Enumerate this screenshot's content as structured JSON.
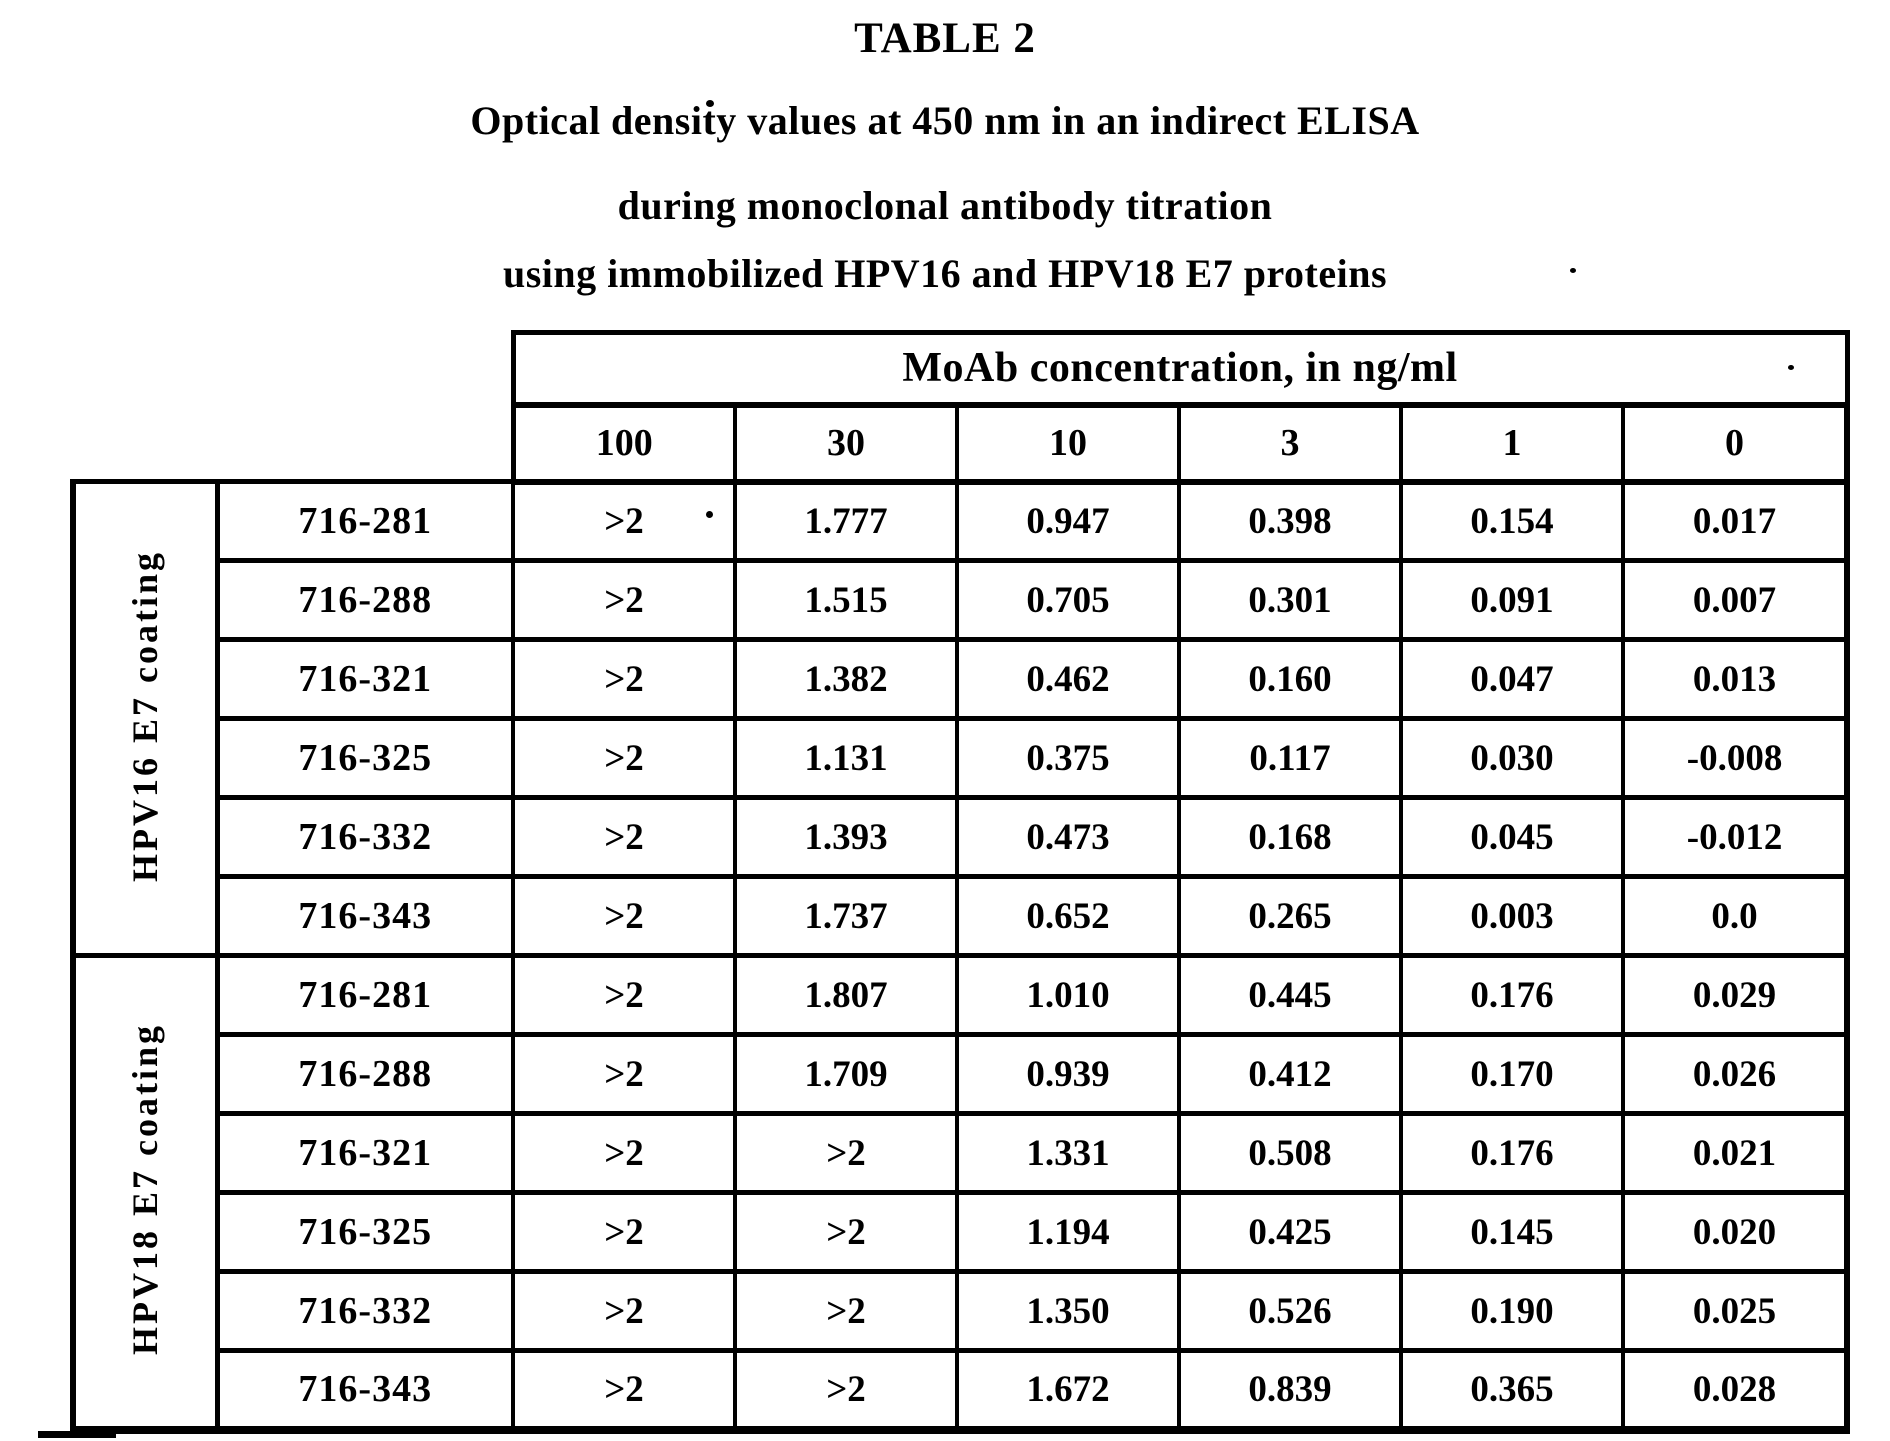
{
  "titles": {
    "main": "TABLE 2",
    "sub1": "Optical density values at 450 nm in an indirect ELISA",
    "sub2": "during monoclonal antibody titration",
    "sub3": "using immobilized HPV16 and HPV18 E7 proteins"
  },
  "table": {
    "header_banner": "MoAb concentration, in ng/ml",
    "concentrations": [
      "100",
      "30",
      "10",
      "3",
      "1",
      "0"
    ],
    "groups": [
      {
        "label": "HPV16 E7 coating",
        "rows": [
          {
            "moab": "716-281",
            "values": [
              ">2",
              "1.777",
              "0.947",
              "0.398",
              "0.154",
              "0.017"
            ]
          },
          {
            "moab": "716-288",
            "values": [
              ">2",
              "1.515",
              "0.705",
              "0.301",
              "0.091",
              "0.007"
            ]
          },
          {
            "moab": "716-321",
            "values": [
              ">2",
              "1.382",
              "0.462",
              "0.160",
              "0.047",
              "0.013"
            ]
          },
          {
            "moab": "716-325",
            "values": [
              ">2",
              "1.131",
              "0.375",
              "0.117",
              "0.030",
              "-0.008"
            ]
          },
          {
            "moab": "716-332",
            "values": [
              ">2",
              "1.393",
              "0.473",
              "0.168",
              "0.045",
              "-0.012"
            ]
          },
          {
            "moab": "716-343",
            "values": [
              ">2",
              "1.737",
              "0.652",
              "0.265",
              "0.003",
              "0.0"
            ]
          }
        ]
      },
      {
        "label": "HPV18 E7 coating",
        "rows": [
          {
            "moab": "716-281",
            "values": [
              ">2",
              "1.807",
              "1.010",
              "0.445",
              "0.176",
              "0.029"
            ]
          },
          {
            "moab": "716-288",
            "values": [
              ">2",
              "1.709",
              "0.939",
              "0.412",
              "0.170",
              "0.026"
            ]
          },
          {
            "moab": "716-321",
            "values": [
              ">2",
              ">2",
              "1.331",
              "0.508",
              "0.176",
              "0.021"
            ]
          },
          {
            "moab": "716-325",
            "values": [
              ">2",
              ">2",
              "1.194",
              "0.425",
              "0.145",
              "0.020"
            ]
          },
          {
            "moab": "716-332",
            "values": [
              ">2",
              ">2",
              "1.350",
              "0.526",
              "0.190",
              "0.025"
            ]
          },
          {
            "moab": "716-343",
            "values": [
              ">2",
              ">2",
              "1.672",
              "0.839",
              "0.365",
              "0.028"
            ]
          }
        ]
      }
    ]
  }
}
